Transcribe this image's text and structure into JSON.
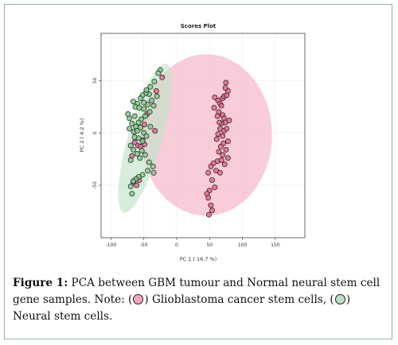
{
  "chart_data": {
    "type": "scatter",
    "title": "Scores Plot",
    "xlabel": "PC 1 ( 16.7 %)",
    "ylabel": "PC 2 ( 4.2 %)",
    "xlim": [
      -115,
      195
    ],
    "ylim": [
      -100,
      95
    ],
    "xticks": [
      -100,
      -50,
      0,
      50,
      100,
      150
    ],
    "yticks": [
      50,
      0,
      -50
    ],
    "grid": true,
    "colors": {
      "group1": "#f4a6bd",
      "group2": "#b8dfc0",
      "ellipse1": "#f7b9cb",
      "ellipse2": "#bfe3c8",
      "point1": "#e7668c",
      "point2": "#82c98c"
    },
    "series": [
      {
        "name": "Glioblastoma cancer stem cells",
        "color": "#e7668c",
        "points": [
          [
            -59,
            -12
          ],
          [
            -55,
            -13
          ],
          [
            -49,
            -11
          ],
          [
            -68,
            -22
          ],
          [
            -52,
            -7
          ],
          [
            -64,
            -9
          ],
          [
            -57,
            -45
          ],
          [
            -66,
            -47
          ],
          [
            -61,
            -50
          ],
          [
            -49,
            8
          ],
          [
            -45,
            18
          ],
          [
            -31,
            40
          ],
          [
            -22,
            53
          ],
          [
            -33,
            2
          ],
          [
            58,
            34
          ],
          [
            63,
            31
          ],
          [
            66,
            28
          ],
          [
            70,
            33
          ],
          [
            72,
            35
          ],
          [
            76,
            36
          ],
          [
            78,
            40
          ],
          [
            74,
            43
          ],
          [
            75,
            48
          ],
          [
            68,
            26
          ],
          [
            64,
            20
          ],
          [
            62,
            16
          ],
          [
            70,
            17
          ],
          [
            72,
            14
          ],
          [
            74,
            10
          ],
          [
            68,
            9
          ],
          [
            66,
            4
          ],
          [
            63,
            -1
          ],
          [
            70,
            -3
          ],
          [
            72,
            2
          ],
          [
            76,
            4
          ],
          [
            78,
            -8
          ],
          [
            71,
            -10
          ],
          [
            67,
            -13
          ],
          [
            64,
            -18
          ],
          [
            62,
            -27
          ],
          [
            68,
            -26
          ],
          [
            70,
            -21
          ],
          [
            75,
            -16
          ],
          [
            56,
            -29
          ],
          [
            52,
            -32
          ],
          [
            48,
            -38
          ],
          [
            54,
            -45
          ],
          [
            58,
            -52
          ],
          [
            50,
            -55
          ],
          [
            46,
            -58
          ],
          [
            48,
            -62
          ],
          [
            52,
            -69
          ],
          [
            54,
            -74
          ],
          [
            49,
            -78
          ],
          [
            60,
            -36
          ],
          [
            66,
            -38
          ],
          [
            73,
            -30
          ],
          [
            78,
            -24
          ],
          [
            57,
            24
          ],
          [
            61,
            -6
          ],
          [
            65,
            10
          ],
          [
            80,
            12
          ]
        ]
      },
      {
        "name": "Neural stem cells",
        "color": "#82c98c",
        "points": [
          [
            -25,
            60
          ],
          [
            -28,
            57
          ],
          [
            -34,
            49
          ],
          [
            -40,
            44
          ],
          [
            -42,
            37
          ],
          [
            -47,
            38
          ],
          [
            -52,
            36
          ],
          [
            -55,
            33
          ],
          [
            -60,
            28
          ],
          [
            -63,
            25
          ],
          [
            -66,
            30
          ],
          [
            -57,
            24
          ],
          [
            -50,
            23
          ],
          [
            -44,
            27
          ],
          [
            -38,
            31
          ],
          [
            -30,
            35
          ],
          [
            -35,
            26
          ],
          [
            -41,
            20
          ],
          [
            -48,
            16
          ],
          [
            -54,
            13
          ],
          [
            -58,
            10
          ],
          [
            -62,
            6
          ],
          [
            -68,
            9
          ],
          [
            -72,
            4
          ],
          [
            -65,
            1
          ],
          [
            -60,
            2
          ],
          [
            -55,
            5
          ],
          [
            -50,
            0
          ],
          [
            -46,
            -3
          ],
          [
            -52,
            -8
          ],
          [
            -58,
            -5
          ],
          [
            -64,
            -4
          ],
          [
            -70,
            -12
          ],
          [
            -66,
            -16
          ],
          [
            -60,
            -20
          ],
          [
            -56,
            -24
          ],
          [
            -48,
            -21
          ],
          [
            -42,
            -28
          ],
          [
            -36,
            -32
          ],
          [
            -44,
            -36
          ],
          [
            -52,
            -40
          ],
          [
            -58,
            -42
          ],
          [
            -62,
            -44
          ],
          [
            -66,
            -46
          ],
          [
            -70,
            -51
          ],
          [
            -68,
            -58
          ],
          [
            -72,
            14
          ],
          [
            -74,
            18
          ],
          [
            -46,
            41
          ],
          [
            -40,
            6
          ],
          [
            -50,
            29
          ],
          [
            -35,
            -38
          ],
          [
            -70,
            -26
          ],
          [
            -53,
            -17
          ],
          [
            -64,
            16
          ]
        ]
      }
    ],
    "ellipses": [
      {
        "series": "Glioblastoma cancer stem cells",
        "cx": 45,
        "cy": -2,
        "rx": 100,
        "ry": 77,
        "angle": 0,
        "color": "#f7b9cb"
      },
      {
        "series": "Neural stem cells",
        "cx": -48,
        "cy": -5,
        "rx": 26,
        "ry": 74,
        "angle": 16,
        "color": "#bfe3c8"
      }
    ]
  },
  "caption": {
    "label": "Figure 1:",
    "text_1": " PCA between GBM tumour and Normal neural stem cell gene samples. Note: (",
    "text_2": ") Glioblastoma cancer stem cells, (",
    "text_3": ") Neural stem cells."
  }
}
